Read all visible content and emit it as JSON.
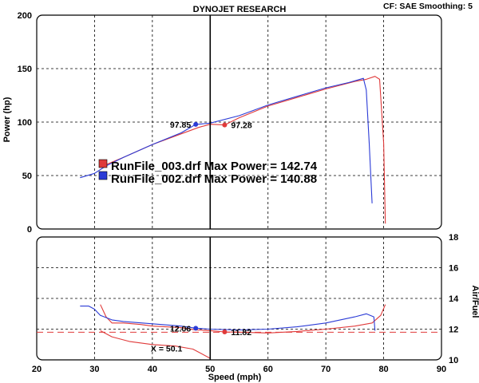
{
  "header": {
    "title": "DYNOJET RESEARCH",
    "info": "CF: SAE  Smoothing: 5"
  },
  "colors": {
    "run_003": "#e03a3a",
    "run_002": "#2b3bd6",
    "plot_bg": "#ffffff",
    "frame": "#000000",
    "afr_ref_line": "#e03a3a"
  },
  "cursor": {
    "x_value": 50,
    "x_readout": "X = 50.1"
  },
  "chart_data": [
    {
      "type": "line",
      "panel": "power",
      "title": "DYNOJET RESEARCH",
      "xlabel": "Speed (mph)",
      "ylabel": "Power (hp)",
      "xlim": [
        20,
        90
      ],
      "ylim": [
        0,
        200
      ],
      "x_ticks": [
        20,
        30,
        40,
        50,
        60,
        70,
        80,
        90
      ],
      "y_ticks": [
        0,
        50,
        100,
        150,
        200
      ],
      "grid": true,
      "legend_placement": "middle-left",
      "legend": [
        {
          "label": "RunFile_003.drf Max Power = 142.74",
          "color": "#e03a3a"
        },
        {
          "label": "RunFile_002.drf Max Power = 140.88",
          "color": "#2b3bd6"
        }
      ],
      "annotations": [
        {
          "text": "97.85",
          "x": 47.5,
          "y": 97.85,
          "color": "#2b3bd6"
        },
        {
          "text": "97.28",
          "x": 52.5,
          "y": 97.28,
          "color": "#e03a3a"
        }
      ],
      "series": [
        {
          "name": "RunFile_003.drf",
          "color": "#e03a3a",
          "x": [
            31,
            35,
            40,
            45,
            48,
            50,
            52.5,
            55,
            60,
            65,
            70,
            75,
            77,
            78.5,
            79.3,
            80,
            80.3
          ],
          "y": [
            58,
            67,
            79,
            89,
            95,
            98,
            97.3,
            104,
            115,
            123,
            131,
            138,
            140,
            142.74,
            140,
            80,
            5
          ]
        },
        {
          "name": "RunFile_002.drf",
          "color": "#2b3bd6",
          "x": [
            27.5,
            30,
            32,
            35,
            40,
            45,
            47.5,
            50,
            55,
            60,
            65,
            70,
            74,
            76.5,
            77,
            77.5,
            78
          ],
          "y": [
            48,
            52,
            59,
            67,
            79,
            90,
            97.85,
            99,
            106,
            116,
            124,
            132,
            137,
            140.88,
            130,
            80,
            24
          ]
        }
      ]
    },
    {
      "type": "line",
      "panel": "air_fuel",
      "xlabel": "Speed (mph)",
      "ylabel": "Air/Fuel",
      "xlim": [
        20,
        90
      ],
      "ylim": [
        10,
        18
      ],
      "x_ticks": [
        20,
        30,
        40,
        50,
        60,
        70,
        80,
        90
      ],
      "y_ticks": [
        10,
        12,
        14,
        16,
        18
      ],
      "grid": true,
      "reference_line": 11.8,
      "annotations": [
        {
          "text": "12.06",
          "x": 47.5,
          "y": 12.06,
          "color": "#2b3bd6"
        },
        {
          "text": "11.82",
          "x": 52.5,
          "y": 11.82,
          "color": "#e03a3a"
        },
        {
          "text": "X = 50.1",
          "x": 46,
          "y": 10.75,
          "color": "#000000"
        }
      ],
      "series": [
        {
          "name": "RunFile_003.drf",
          "color": "#e03a3a",
          "x": [
            31,
            32,
            33,
            35,
            38,
            40,
            45,
            47.5,
            50,
            52.5,
            55,
            60,
            65,
            70,
            75,
            78,
            79.5,
            80.3
          ],
          "y": [
            13.6,
            12.8,
            12.4,
            12.4,
            12.3,
            12.2,
            12.1,
            11.95,
            11.9,
            11.82,
            11.8,
            11.75,
            11.85,
            12.0,
            12.2,
            12.4,
            12.9,
            13.6
          ]
        },
        {
          "name": "RunFile_002.drf",
          "color": "#2b3bd6",
          "x": [
            27.5,
            29,
            30,
            31,
            33,
            35,
            40,
            45,
            47.5,
            50,
            55,
            60,
            65,
            70,
            75,
            77,
            78.3,
            78.5
          ],
          "y": [
            13.5,
            13.5,
            13.3,
            12.9,
            12.6,
            12.5,
            12.35,
            12.2,
            12.06,
            12.0,
            11.95,
            12.0,
            12.15,
            12.4,
            12.8,
            13.0,
            12.8,
            11.9
          ]
        },
        {
          "name": "",
          "color": "#e03a3a",
          "x": [
            31,
            33,
            36,
            40,
            44,
            47,
            50
          ],
          "y": [
            11.9,
            11.5,
            11.2,
            11.0,
            10.9,
            10.7,
            10.1
          ]
        }
      ]
    }
  ]
}
